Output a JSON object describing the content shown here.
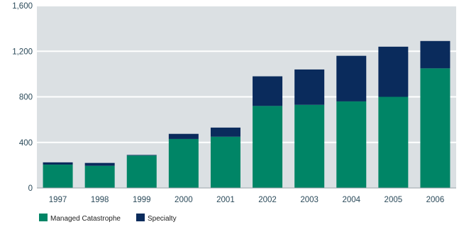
{
  "chart_data": {
    "type": "bar",
    "stacked": true,
    "categories": [
      "1997",
      "1998",
      "1999",
      "2000",
      "2001",
      "2002",
      "2003",
      "2004",
      "2005",
      "2006"
    ],
    "series": [
      {
        "name": "Managed Catastrophe",
        "values": [
          205,
          195,
          285,
          430,
          450,
          720,
          730,
          760,
          800,
          1050
        ],
        "color": "#008566"
      },
      {
        "name": "Specialty",
        "values": [
          20,
          25,
          5,
          45,
          80,
          260,
          310,
          400,
          440,
          240
        ],
        "color": "#0a2b5c"
      }
    ],
    "y_ticks": [
      "0",
      "400",
      "800",
      "1,200",
      "1,600"
    ],
    "ylim": [
      0,
      1600
    ],
    "grid": true,
    "legend_position": "bottom-left",
    "plot_background": "#dbe0e3",
    "grid_color": "#ffffff"
  }
}
